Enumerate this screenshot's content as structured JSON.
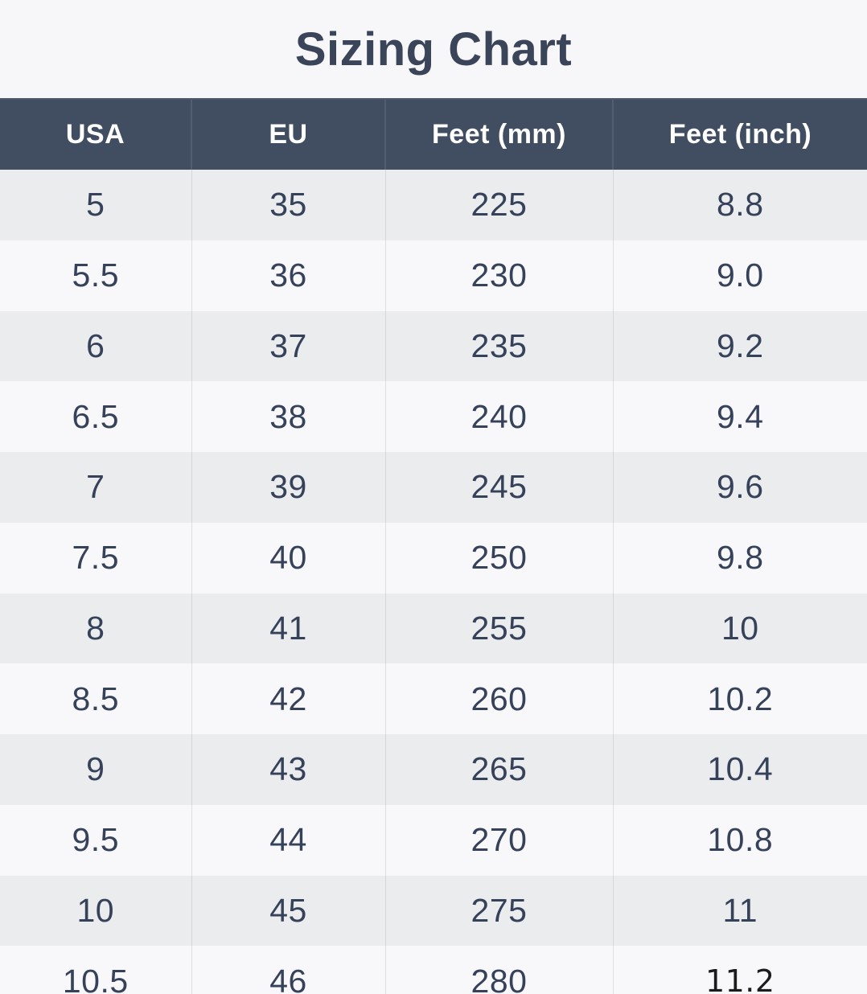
{
  "page": {
    "title": "Sizing Chart"
  },
  "colors": {
    "background": "#f7f7f9",
    "title_text": "#3b4559",
    "header_background": "#414d60",
    "header_text": "#ffffff",
    "row_shaded": "#ebecee",
    "row_light": "#f8f8fa",
    "cell_text": "#36415a",
    "special_cell_text": "#1c1c1c"
  },
  "special_cell": {
    "row": 11,
    "col": 3
  },
  "chart_data": {
    "type": "table",
    "title": "Sizing Chart",
    "columns": [
      "USA",
      "EU",
      "Feet (mm)",
      "Feet (inch)"
    ],
    "rows": [
      [
        "5",
        "35",
        "225",
        "8.8"
      ],
      [
        "5.5",
        "36",
        "230",
        "9.0"
      ],
      [
        "6",
        "37",
        "235",
        "9.2"
      ],
      [
        "6.5",
        "38",
        "240",
        "9.4"
      ],
      [
        "7",
        "39",
        "245",
        "9.6"
      ],
      [
        "7.5",
        "40",
        "250",
        "9.8"
      ],
      [
        "8",
        "41",
        "255",
        "10"
      ],
      [
        "8.5",
        "42",
        "260",
        "10.2"
      ],
      [
        "9",
        "43",
        "265",
        "10.4"
      ],
      [
        "9.5",
        "44",
        "270",
        "10.8"
      ],
      [
        "10",
        "45",
        "275",
        "11"
      ],
      [
        "10.5",
        "46",
        "280",
        "11.2"
      ]
    ]
  }
}
